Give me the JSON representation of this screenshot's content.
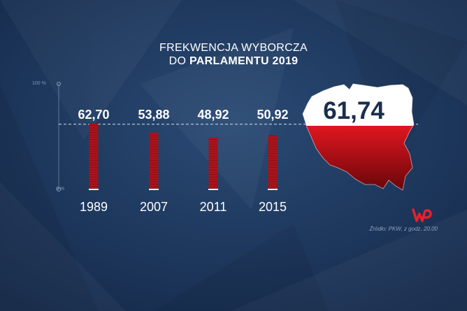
{
  "header": {
    "title_line1": "FREKWENCJA WYBORCZA",
    "title_line2_prefix": "DO ",
    "title_line2_bold": "PARLAMENTU 2019"
  },
  "chart_data": {
    "type": "bar",
    "title": "FREKWENCJA WYBORCZA DO PARLAMENTU 2019",
    "categories": [
      "1989",
      "2007",
      "2011",
      "2015"
    ],
    "values": [
      62.7,
      53.88,
      48.92,
      50.92
    ],
    "value_labels": [
      "62,70",
      "53,88",
      "48,92",
      "50,92"
    ],
    "highlight": {
      "label": "61,74",
      "value": 61.74
    },
    "ylim": [
      0,
      100
    ],
    "y_axis_labels": {
      "max": "100 %",
      "min": "0 %"
    },
    "reference_line_value": 61.74,
    "grid": false,
    "bar_color": "#c0141b",
    "flag_colors": {
      "top": "#ffffff",
      "bottom": "#d0141e"
    }
  },
  "footer": {
    "source": "Źródło: PKW, z godz. 20.00"
  },
  "logo": {
    "icon": "wp-logo-icon",
    "color": "#e8202a"
  }
}
